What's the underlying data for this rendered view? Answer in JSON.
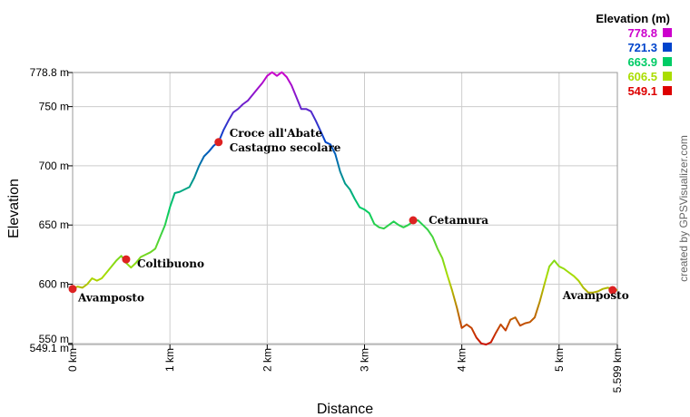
{
  "chart_data": {
    "type": "line",
    "title": "",
    "xlabel": "Distance",
    "ylabel": "Elevation",
    "xlim": [
      0,
      5.599
    ],
    "ylim": [
      549.1,
      778.8
    ],
    "x_ticks": [
      "0 km",
      "1 km",
      "2 km",
      "3 km",
      "4 km",
      "5 km",
      "5.599 km"
    ],
    "y_ticks": [
      "778.8 m",
      "750 m",
      "700 m",
      "650 m",
      "600 m",
      "550 m",
      "549.1 m"
    ],
    "grid": true,
    "legend": {
      "title": "Elevation (m)",
      "placement": "top-right",
      "entries": [
        {
          "label": "778.8",
          "color": "#cc00cc"
        },
        {
          "label": "721.3",
          "color": "#0044cc"
        },
        {
          "label": "663.9",
          "color": "#00cc66"
        },
        {
          "label": "606.5",
          "color": "#aadd00"
        },
        {
          "label": "549.1",
          "color": "#dd0000"
        }
      ]
    },
    "series": [
      {
        "x": [
          0,
          0.05,
          0.1,
          0.15,
          0.2,
          0.25,
          0.3,
          0.35,
          0.4,
          0.45,
          0.5,
          0.55,
          0.6,
          0.65,
          0.7,
          0.75,
          0.8,
          0.85,
          0.9,
          0.95,
          1.0,
          1.05,
          1.1,
          1.15,
          1.2,
          1.25,
          1.3,
          1.35,
          1.4,
          1.45,
          1.5,
          1.55,
          1.6,
          1.65,
          1.7,
          1.75,
          1.8,
          1.85,
          1.9,
          1.95,
          2.0,
          2.05,
          2.1,
          2.15,
          2.2,
          2.25,
          2.3,
          2.35,
          2.4,
          2.45,
          2.5,
          2.55,
          2.6,
          2.65,
          2.7,
          2.75,
          2.8,
          2.85,
          2.9,
          2.95,
          3.0,
          3.05,
          3.1,
          3.15,
          3.2,
          3.25,
          3.3,
          3.35,
          3.4,
          3.45,
          3.5,
          3.55,
          3.6,
          3.65,
          3.7,
          3.75,
          3.8,
          3.85,
          3.9,
          3.95,
          4.0,
          4.05,
          4.1,
          4.15,
          4.2,
          4.25,
          4.3,
          4.35,
          4.4,
          4.45,
          4.5,
          4.55,
          4.6,
          4.65,
          4.7,
          4.75,
          4.8,
          4.85,
          4.9,
          4.95,
          5.0,
          5.05,
          5.1,
          5.15,
          5.2,
          5.25,
          5.3,
          5.35,
          5.4,
          5.45,
          5.5,
          5.55,
          5.599
        ],
        "y": [
          596,
          598,
          597,
          600,
          605,
          603,
          605,
          610,
          615,
          620,
          624,
          618,
          614,
          618,
          623,
          625,
          627,
          630,
          640,
          650,
          665,
          677,
          678,
          680,
          682,
          690,
          700,
          708,
          712,
          717,
          720,
          730,
          738,
          745,
          748,
          752,
          755,
          760,
          765,
          770,
          776,
          779,
          776,
          779,
          775,
          768,
          758,
          748,
          748,
          746,
          738,
          729,
          720,
          718,
          710,
          695,
          685,
          680,
          672,
          665,
          663,
          660,
          651,
          648,
          647,
          650,
          653,
          650,
          648,
          650,
          653,
          654,
          650,
          646,
          640,
          630,
          622,
          608,
          595,
          580,
          563,
          566,
          563,
          555,
          550,
          549,
          551,
          559,
          566,
          561,
          570,
          572,
          565,
          567,
          568,
          572,
          585,
          600,
          615,
          620,
          615,
          613,
          610,
          607,
          603,
          597,
          593,
          593,
          594,
          596,
          597,
          596,
          595
        ]
      }
    ],
    "waypoints": [
      {
        "x": 0.0,
        "y": 596,
        "label": "Avamposto"
      },
      {
        "x": 0.55,
        "y": 621,
        "label": "Coltibuono"
      },
      {
        "x": 1.5,
        "y": 720,
        "label": "Croce all'Abate"
      },
      {
        "x": 1.5,
        "y": 720,
        "label": "Castagno secolare"
      },
      {
        "x": 3.5,
        "y": 654,
        "label": "Cetamura"
      },
      {
        "x": 5.55,
        "y": 595,
        "label": "Avamposto"
      }
    ]
  },
  "credit": "created by GPSVisualizer.com",
  "colors": {
    "grid": "#cccccc",
    "waypoint": "#dd2222",
    "axis": "#000000"
  }
}
